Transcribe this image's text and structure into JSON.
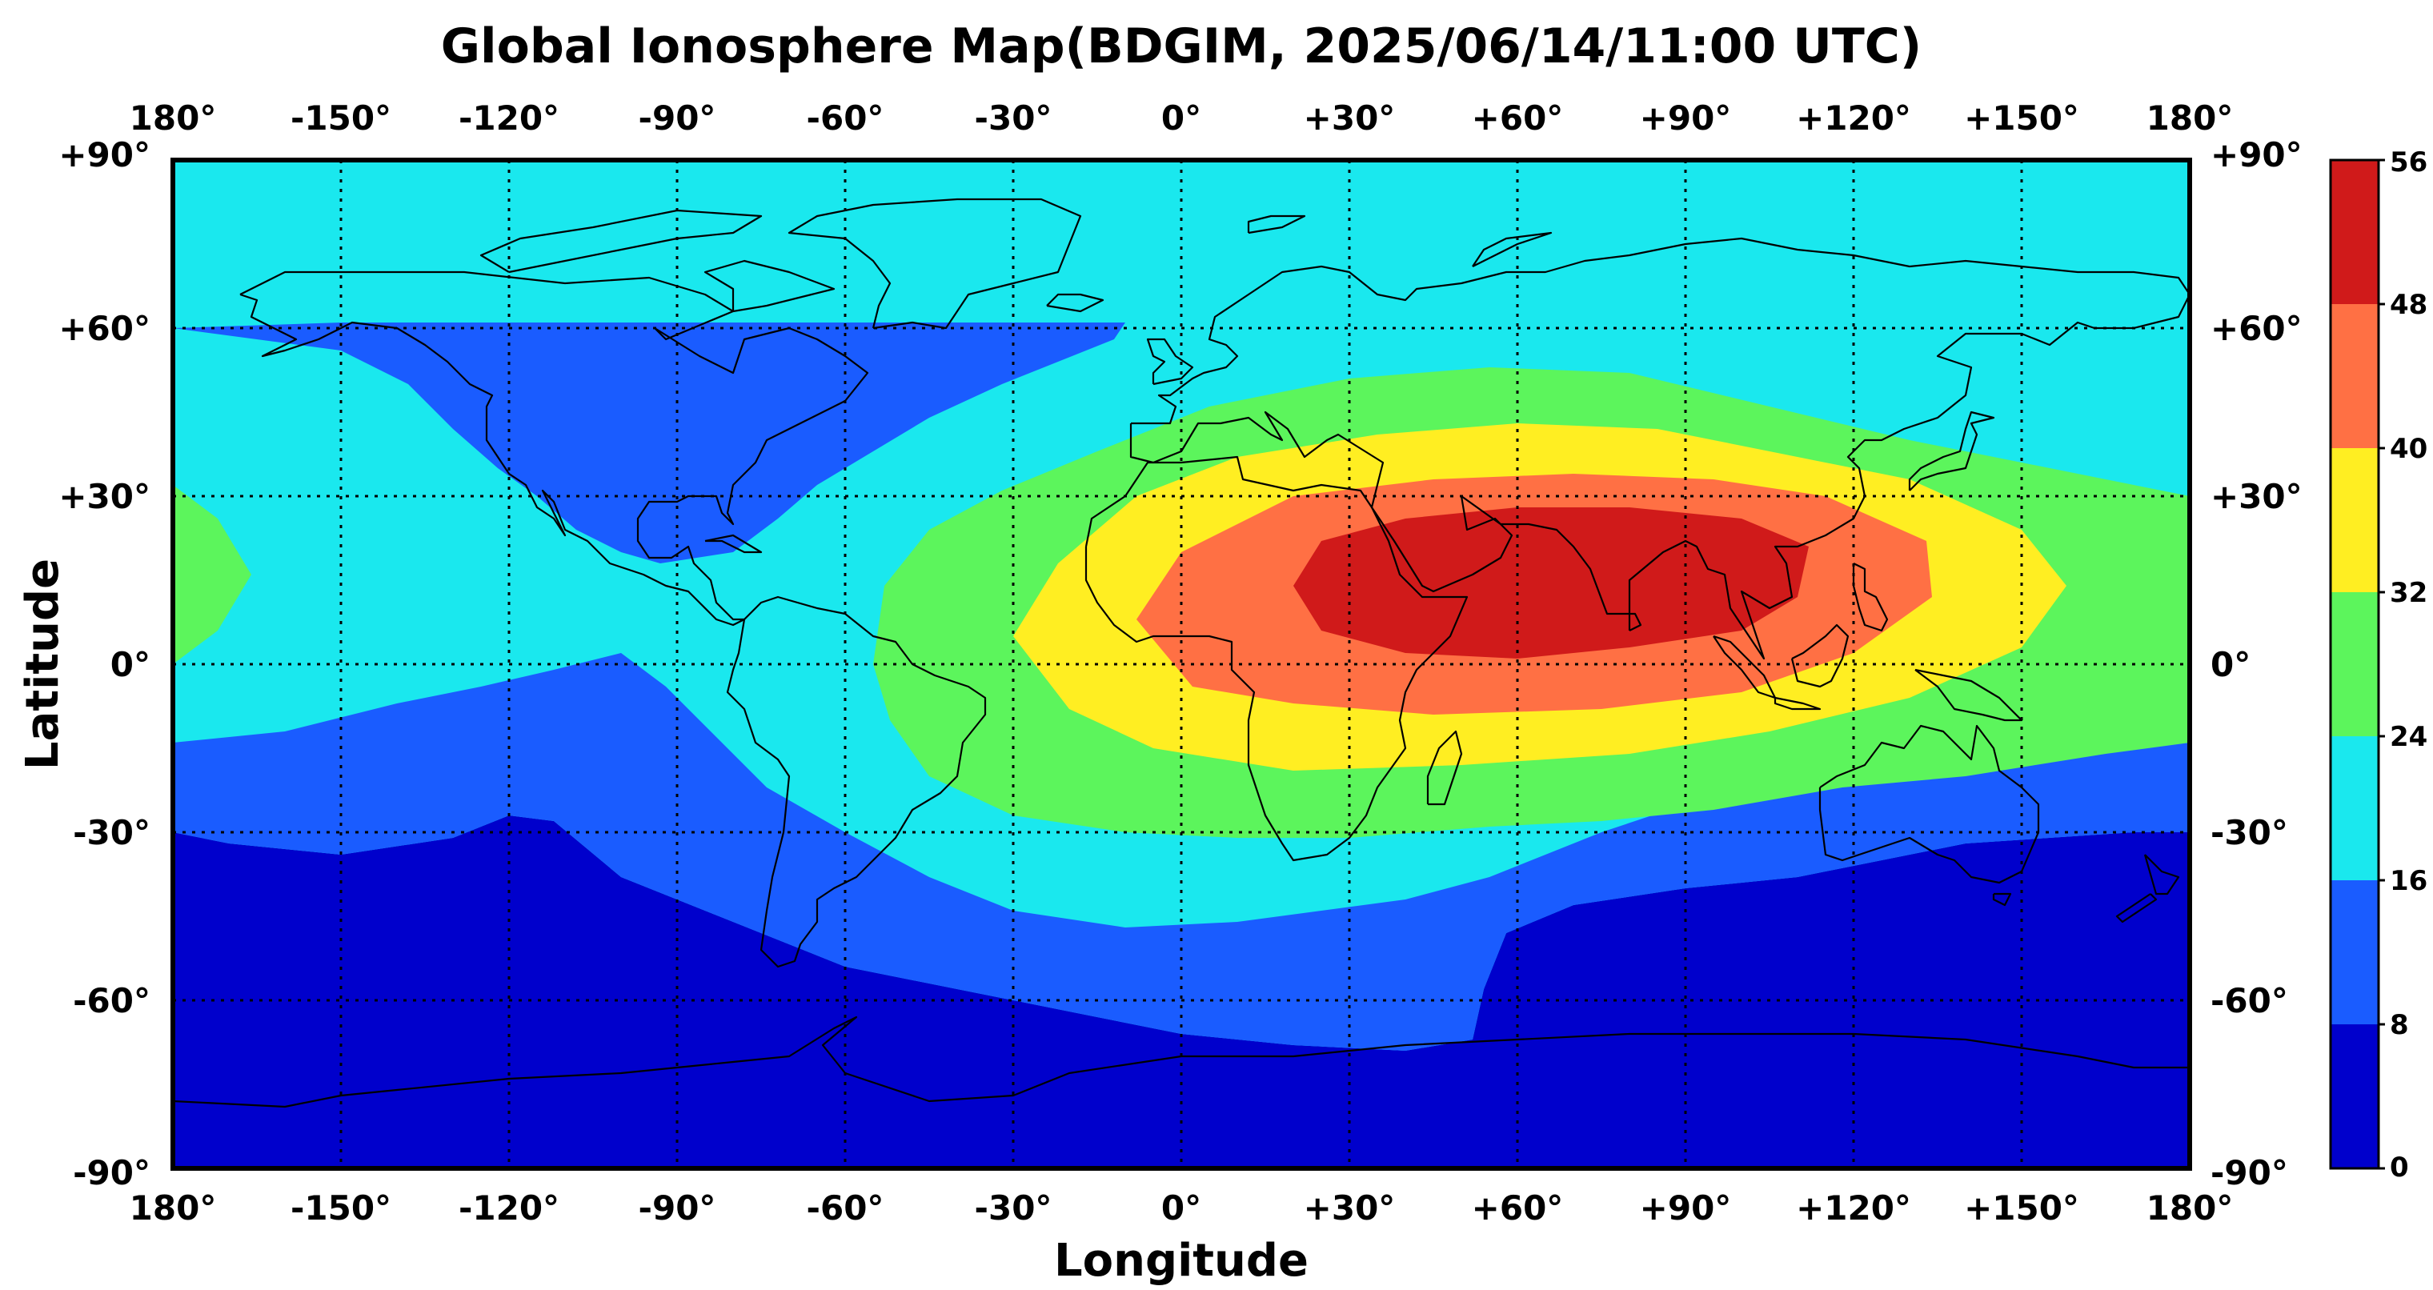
{
  "title": "Global Ionosphere Map(BDGIM, 2025/06/14/11:00 UTC)",
  "chart_data": {
    "type": "heatmap",
    "title": "Global Ionosphere Map(BDGIM, 2025/06/14/11:00 UTC)",
    "xlabel": "Longitude",
    "ylabel": "Latitude",
    "xlim": [
      -180,
      180
    ],
    "ylim": [
      -90,
      90
    ],
    "grid": true,
    "x_ticks": [
      -180,
      -150,
      -120,
      -90,
      -60,
      -30,
      0,
      30,
      60,
      90,
      120,
      150,
      180
    ],
    "x_tick_labels": [
      "180°",
      "-150°",
      "-120°",
      "-90°",
      "-60°",
      "-30°",
      "0°",
      "+30°",
      "+60°",
      "+90°",
      "+120°",
      "+150°",
      "180°"
    ],
    "y_ticks": [
      90,
      60,
      30,
      0,
      -30,
      -60,
      -90
    ],
    "y_tick_labels": [
      "+90°",
      "+60°",
      "+30°",
      "0°",
      "-30°",
      "-60°",
      "-90°"
    ],
    "colorbar": {
      "ticks": [
        0,
        8,
        16,
        24,
        32,
        40,
        48,
        56
      ],
      "tick_labels": [
        "0",
        "8",
        "16",
        "24",
        "32",
        "40",
        "48",
        "56"
      ],
      "colors": [
        "#0000cc",
        "#1a5cff",
        "#1ae8ee",
        "#5cf55c",
        "#ffee22",
        "#ff7044",
        "#d01a1a"
      ],
      "placement": "right"
    },
    "contours": {
      "band_8": [
        [
          -180,
          -30
        ],
        [
          -170,
          -32
        ],
        [
          -150,
          -34
        ],
        [
          -130,
          -31
        ],
        [
          -120,
          -27
        ],
        [
          -112,
          -28
        ],
        [
          -100,
          -38
        ],
        [
          -80,
          -46
        ],
        [
          -70,
          -50
        ],
        [
          -60,
          -54
        ],
        [
          -40,
          -58
        ],
        [
          -20,
          -62
        ],
        [
          0,
          -66
        ],
        [
          20,
          -68
        ],
        [
          40,
          -69
        ],
        [
          52,
          -67
        ],
        [
          54,
          -58
        ],
        [
          58,
          -48
        ],
        [
          70,
          -43
        ],
        [
          90,
          -40
        ],
        [
          110,
          -38
        ],
        [
          120,
          -36
        ],
        [
          140,
          -32
        ],
        [
          170,
          -30
        ],
        [
          180,
          -30
        ]
      ],
      "band_16_south": [
        [
          -180,
          -14
        ],
        [
          -160,
          -12
        ],
        [
          -140,
          -7
        ],
        [
          -125,
          -4
        ],
        [
          -112,
          -1
        ],
        [
          -100,
          2
        ],
        [
          -92,
          -4
        ],
        [
          -82,
          -14
        ],
        [
          -74,
          -22
        ],
        [
          -60,
          -30
        ],
        [
          -45,
          -38
        ],
        [
          -30,
          -44
        ],
        [
          -10,
          -47
        ],
        [
          10,
          -46
        ],
        [
          25,
          -44
        ],
        [
          40,
          -42
        ],
        [
          55,
          -38
        ],
        [
          75,
          -30
        ],
        [
          90,
          -25
        ],
        [
          105,
          -20
        ],
        [
          125,
          -17
        ],
        [
          150,
          -14
        ],
        [
          180,
          -14
        ]
      ],
      "band_16_north": [
        [
          -180,
          60
        ],
        [
          -150,
          56
        ],
        [
          -138,
          50
        ],
        [
          -130,
          42
        ],
        [
          -122,
          35
        ],
        [
          -115,
          30
        ],
        [
          -108,
          24
        ],
        [
          -100,
          20
        ],
        [
          -93,
          18
        ],
        [
          -80,
          20
        ],
        [
          -72,
          26
        ],
        [
          -65,
          32
        ],
        [
          -55,
          38
        ],
        [
          -45,
          44
        ],
        [
          -32,
          50
        ],
        [
          -22,
          54
        ],
        [
          -12,
          58
        ],
        [
          -10,
          61
        ],
        [
          -90,
          61
        ],
        [
          -150,
          61
        ]
      ],
      "band_24": [
        [
          -55,
          0
        ],
        [
          -53,
          14
        ],
        [
          -45,
          24
        ],
        [
          -32,
          31
        ],
        [
          -15,
          38
        ],
        [
          5,
          46
        ],
        [
          30,
          51
        ],
        [
          55,
          53
        ],
        [
          80,
          52
        ],
        [
          105,
          46
        ],
        [
          130,
          40
        ],
        [
          165,
          33
        ],
        [
          180,
          30
        ],
        [
          180,
          -14
        ],
        [
          165,
          -16
        ],
        [
          140,
          -20
        ],
        [
          118,
          -22
        ],
        [
          95,
          -26
        ],
        [
          75,
          -28
        ],
        [
          55,
          -29
        ],
        [
          30,
          -31
        ],
        [
          10,
          -31
        ],
        [
          -10,
          -30
        ],
        [
          -30,
          -27
        ],
        [
          -45,
          -20
        ],
        [
          -52,
          -10
        ]
      ],
      "band_24_west": [
        [
          -180,
          32
        ],
        [
          -172,
          26
        ],
        [
          -166,
          16
        ],
        [
          -172,
          6
        ],
        [
          -180,
          0
        ]
      ],
      "band_32": [
        [
          -30,
          5
        ],
        [
          -22,
          18
        ],
        [
          -8,
          30
        ],
        [
          10,
          37
        ],
        [
          35,
          41
        ],
        [
          60,
          43
        ],
        [
          85,
          42
        ],
        [
          105,
          38
        ],
        [
          130,
          33
        ],
        [
          150,
          24
        ],
        [
          158,
          14
        ],
        [
          150,
          3
        ],
        [
          130,
          -6
        ],
        [
          105,
          -12
        ],
        [
          80,
          -16
        ],
        [
          50,
          -18
        ],
        [
          20,
          -19
        ],
        [
          -5,
          -15
        ],
        [
          -20,
          -8
        ]
      ],
      "band_40": [
        [
          -8,
          8
        ],
        [
          0,
          20
        ],
        [
          20,
          30
        ],
        [
          45,
          33
        ],
        [
          70,
          34
        ],
        [
          95,
          33
        ],
        [
          115,
          30
        ],
        [
          133,
          22
        ],
        [
          134,
          12
        ],
        [
          120,
          2
        ],
        [
          100,
          -5
        ],
        [
          75,
          -8
        ],
        [
          45,
          -9
        ],
        [
          20,
          -7
        ],
        [
          2,
          -4
        ]
      ],
      "band_48": [
        [
          20,
          14
        ],
        [
          25,
          22
        ],
        [
          40,
          26
        ],
        [
          60,
          28
        ],
        [
          80,
          28
        ],
        [
          100,
          26
        ],
        [
          112,
          21
        ],
        [
          110,
          12
        ],
        [
          100,
          6
        ],
        [
          80,
          3
        ],
        [
          60,
          1
        ],
        [
          40,
          2
        ],
        [
          25,
          6
        ]
      ]
    }
  }
}
